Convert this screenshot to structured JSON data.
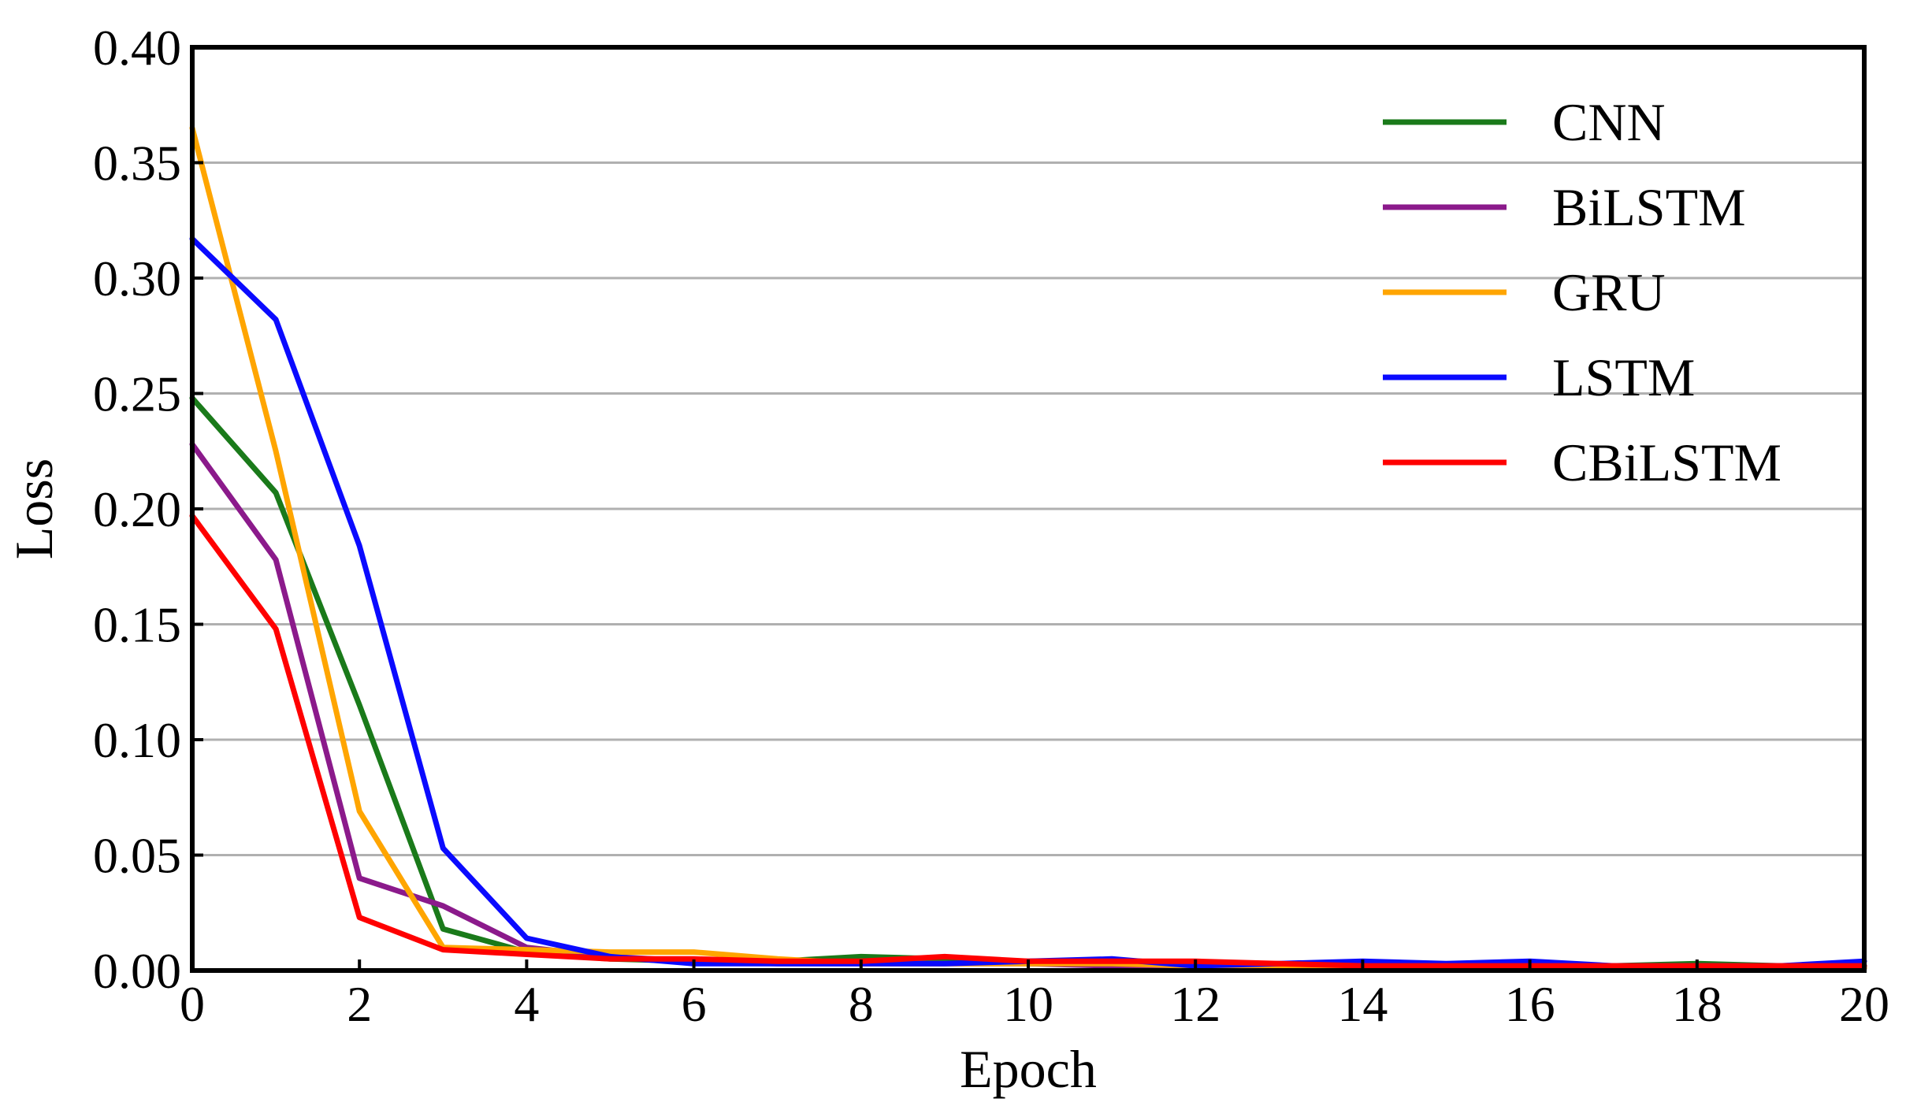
{
  "chart_data": {
    "type": "line",
    "title": "",
    "xlabel": "Epoch",
    "ylabel": "Loss",
    "xlim": [
      0,
      20
    ],
    "ylim": [
      0,
      0.4
    ],
    "xticks": [
      0,
      2,
      4,
      6,
      8,
      10,
      12,
      14,
      16,
      18,
      20
    ],
    "xtick_labels": [
      "0",
      "2",
      "4",
      "6",
      "8",
      "10",
      "12",
      "14",
      "16",
      "18",
      "20"
    ],
    "yticks": [
      0,
      0.05,
      0.1,
      0.15,
      0.2,
      0.25,
      0.3,
      0.35,
      0.4
    ],
    "ytick_labels": [
      "0.00",
      "0.05",
      "0.10",
      "0.15",
      "0.20",
      "0.25",
      "0.30",
      "0.35",
      "0.40"
    ],
    "grid": "horizontal",
    "legend_position": "top-right",
    "x": [
      0,
      1,
      2,
      3,
      4,
      5,
      6,
      7,
      8,
      9,
      10,
      11,
      12,
      13,
      14,
      15,
      16,
      17,
      18,
      19,
      20
    ],
    "series": [
      {
        "name": "CNN",
        "color": "#1a7a1a",
        "values": [
          0.248,
          0.207,
          0.115,
          0.018,
          0.008,
          0.005,
          0.004,
          0.004,
          0.006,
          0.005,
          0.003,
          0.003,
          0.002,
          0.002,
          0.002,
          0.002,
          0.002,
          0.002,
          0.003,
          0.002,
          0.002
        ]
      },
      {
        "name": "BiLSTM",
        "color": "#8b1a8b",
        "values": [
          0.228,
          0.178,
          0.04,
          0.028,
          0.01,
          0.006,
          0.004,
          0.003,
          0.003,
          0.003,
          0.003,
          0.002,
          0.002,
          0.002,
          0.002,
          0.002,
          0.001,
          0.001,
          0.001,
          0.001,
          0.001
        ]
      },
      {
        "name": "GRU",
        "color": "#ffa500",
        "values": [
          0.365,
          0.225,
          0.069,
          0.01,
          0.009,
          0.008,
          0.008,
          0.005,
          0.003,
          0.003,
          0.003,
          0.003,
          0.002,
          0.002,
          0.002,
          0.002,
          0.002,
          0.002,
          0.001,
          0.001,
          0.001
        ]
      },
      {
        "name": "LSTM",
        "color": "#0a0aff",
        "values": [
          0.317,
          0.282,
          0.184,
          0.053,
          0.014,
          0.006,
          0.003,
          0.003,
          0.003,
          0.003,
          0.004,
          0.005,
          0.002,
          0.003,
          0.004,
          0.003,
          0.004,
          0.002,
          0.002,
          0.002,
          0.004
        ]
      },
      {
        "name": "CBiLSTM",
        "color": "#ff0000",
        "values": [
          0.197,
          0.148,
          0.023,
          0.009,
          0.007,
          0.005,
          0.005,
          0.004,
          0.004,
          0.006,
          0.004,
          0.004,
          0.004,
          0.003,
          0.002,
          0.002,
          0.002,
          0.002,
          0.002,
          0.002,
          0.002
        ]
      }
    ]
  }
}
